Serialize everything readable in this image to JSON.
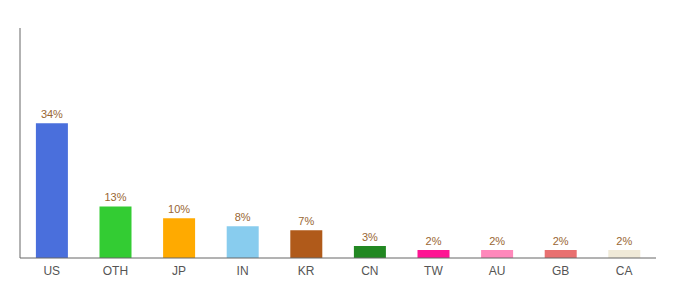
{
  "chart_data": {
    "type": "bar",
    "categories": [
      "US",
      "OTH",
      "JP",
      "IN",
      "KR",
      "CN",
      "TW",
      "AU",
      "GB",
      "CA"
    ],
    "values": [
      34,
      13,
      10,
      8,
      7,
      3,
      2,
      2,
      2,
      2
    ],
    "value_labels": [
      "34%",
      "13%",
      "10%",
      "8%",
      "7%",
      "3%",
      "2%",
      "2%",
      "2%",
      "2%"
    ],
    "data_labels": true,
    "colors": [
      "#4a6fdc",
      "#33cc33",
      "#ffaa00",
      "#88ccee",
      "#b05a1a",
      "#228822",
      "#ff1493",
      "#ff88bb",
      "#e87070",
      "#f0ead8"
    ],
    "ylim": [
      0,
      58
    ],
    "grid": false,
    "tick_labels": "x"
  }
}
